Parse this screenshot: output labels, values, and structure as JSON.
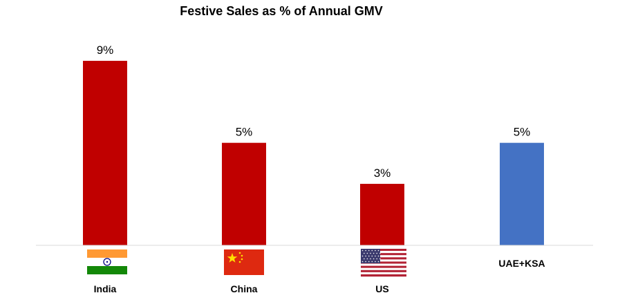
{
  "chart_data": {
    "type": "bar",
    "title": "Festive Sales as % of Annual GMV",
    "categories": [
      "India",
      "China",
      "US",
      "UAE+KSA"
    ],
    "values": [
      9,
      5,
      3,
      5
    ],
    "value_labels": [
      "9%",
      "5%",
      "3%",
      "5%"
    ],
    "unit": "%",
    "ylim": [
      0,
      9
    ],
    "grid": false,
    "legend": "none",
    "bar_colors": [
      "#c00000",
      "#c00000",
      "#c00000",
      "#4472c4"
    ],
    "flag_icons": [
      "india-flag-icon",
      "china-flag-icon",
      "us-flag-icon",
      ""
    ]
  }
}
